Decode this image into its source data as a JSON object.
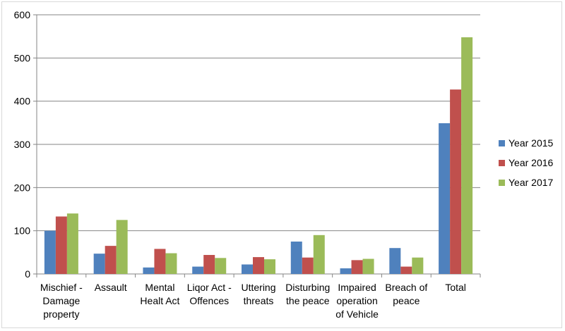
{
  "chart_data": {
    "type": "bar",
    "title": "",
    "xlabel": "",
    "ylabel": "",
    "ylim": [
      0,
      600
    ],
    "yticks": [
      "0",
      "100",
      "200",
      "300",
      "400",
      "500",
      "600"
    ],
    "grid": true,
    "legend_position": "right",
    "categories": [
      [
        "Mischief -",
        "Damage",
        "property"
      ],
      [
        "Assault"
      ],
      [
        "Mental",
        "Healt Act"
      ],
      [
        "Liqor Act -",
        "Offences"
      ],
      [
        "Uttering",
        "threats"
      ],
      [
        "Disturbing",
        "the peace"
      ],
      [
        "Impaired",
        "operation",
        "of Vehicle"
      ],
      [
        "Breach of",
        "peace"
      ],
      [
        "Total"
      ]
    ],
    "series": [
      {
        "name": "Year 2015",
        "color": "#4f81bd",
        "values": [
          100,
          47,
          15,
          17,
          22,
          75,
          13,
          60,
          349
        ]
      },
      {
        "name": "Year 2016",
        "color": "#c0504d",
        "values": [
          133,
          65,
          58,
          44,
          39,
          38,
          32,
          17,
          427
        ]
      },
      {
        "name": "Year 2017",
        "color": "#9bbb59",
        "values": [
          140,
          125,
          48,
          37,
          34,
          90,
          35,
          38,
          548
        ]
      }
    ]
  }
}
